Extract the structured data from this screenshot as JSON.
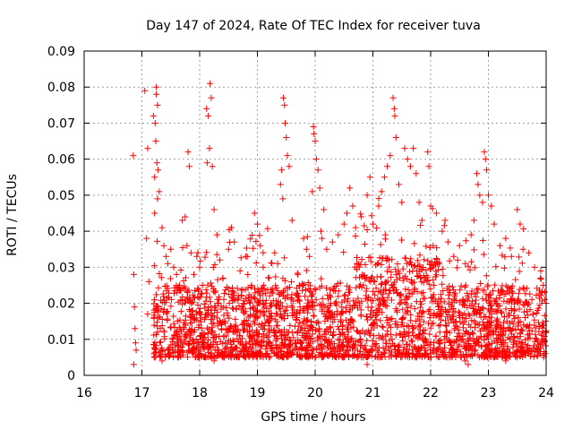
{
  "chart_data": {
    "type": "scatter",
    "title": "Day 147 of 2024, Rate Of TEC Index for receiver tuva",
    "xlabel": "GPS time / hours",
    "ylabel": "ROTI / TECUs",
    "xlim": [
      16,
      24
    ],
    "ylim": [
      0,
      0.09
    ],
    "x_ticks": [
      "16",
      "17",
      "18",
      "19",
      "20",
      "21",
      "22",
      "23",
      "24"
    ],
    "y_ticks": [
      "0",
      "0.01",
      "0.02",
      "0.03",
      "0.04",
      "0.05",
      "0.06",
      "0.07",
      "0.08",
      "0.09"
    ],
    "grid": true,
    "marker": "plus",
    "series_color": "#ff0000",
    "series": [
      {
        "name": "ROTI",
        "points": [
          [
            16.85,
            0.061
          ],
          [
            16.86,
            0.028
          ],
          [
            16.87,
            0.019
          ],
          [
            16.88,
            0.013
          ],
          [
            16.89,
            0.009
          ],
          [
            16.86,
            0.003
          ],
          [
            16.9,
            0.007
          ],
          [
            17.05,
            0.079
          ],
          [
            17.1,
            0.063
          ],
          [
            17.08,
            0.038
          ],
          [
            17.12,
            0.026
          ],
          [
            17.1,
            0.017
          ],
          [
            17.2,
            0.072
          ],
          [
            17.22,
            0.055
          ],
          [
            17.25,
            0.08
          ],
          [
            17.25,
            0.078
          ],
          [
            17.27,
            0.075
          ],
          [
            17.23,
            0.07
          ],
          [
            17.24,
            0.065
          ],
          [
            17.26,
            0.059
          ],
          [
            17.28,
            0.057
          ],
          [
            17.3,
            0.051
          ],
          [
            17.27,
            0.049
          ],
          [
            17.22,
            0.045
          ],
          [
            17.35,
            0.041
          ],
          [
            17.38,
            0.036
          ],
          [
            17.42,
            0.033
          ],
          [
            17.45,
            0.031
          ],
          [
            17.5,
            0.035
          ],
          [
            17.55,
            0.03
          ],
          [
            17.6,
            0.028
          ],
          [
            17.65,
            0.025
          ],
          [
            17.7,
            0.043
          ],
          [
            17.75,
            0.044
          ],
          [
            17.78,
            0.036
          ],
          [
            17.8,
            0.062
          ],
          [
            17.82,
            0.058
          ],
          [
            17.85,
            0.034
          ],
          [
            17.9,
            0.028
          ],
          [
            17.95,
            0.033
          ],
          [
            18.0,
            0.03
          ],
          [
            18.05,
            0.025
          ],
          [
            18.12,
            0.074
          ],
          [
            18.15,
            0.072
          ],
          [
            18.18,
            0.081
          ],
          [
            18.2,
            0.077
          ],
          [
            18.17,
            0.063
          ],
          [
            18.13,
            0.059
          ],
          [
            18.22,
            0.058
          ],
          [
            18.25,
            0.046
          ],
          [
            18.3,
            0.039
          ],
          [
            18.35,
            0.032
          ],
          [
            18.4,
            0.027
          ],
          [
            18.5,
            0.035
          ],
          [
            18.55,
            0.041
          ],
          [
            18.6,
            0.037
          ],
          [
            18.7,
            0.029
          ],
          [
            18.8,
            0.033
          ],
          [
            18.9,
            0.025
          ],
          [
            18.95,
            0.045
          ],
          [
            19.0,
            0.042
          ],
          [
            19.05,
            0.036
          ],
          [
            19.1,
            0.03
          ],
          [
            19.2,
            0.027
          ],
          [
            19.3,
            0.034
          ],
          [
            19.35,
            0.031
          ],
          [
            19.4,
            0.053
          ],
          [
            19.42,
            0.057
          ],
          [
            19.45,
            0.077
          ],
          [
            19.47,
            0.075
          ],
          [
            19.48,
            0.07
          ],
          [
            19.5,
            0.066
          ],
          [
            19.52,
            0.061
          ],
          [
            19.55,
            0.058
          ],
          [
            19.44,
            0.049
          ],
          [
            19.6,
            0.043
          ],
          [
            19.7,
            0.028
          ],
          [
            19.8,
            0.038
          ],
          [
            19.85,
            0.035
          ],
          [
            19.9,
            0.033
          ],
          [
            19.95,
            0.051
          ],
          [
            19.97,
            0.069
          ],
          [
            19.98,
            0.067
          ],
          [
            20.0,
            0.065
          ],
          [
            20.02,
            0.06
          ],
          [
            20.05,
            0.057
          ],
          [
            20.08,
            0.052
          ],
          [
            20.1,
            0.04
          ],
          [
            20.12,
            0.038
          ],
          [
            20.15,
            0.046
          ],
          [
            20.2,
            0.035
          ],
          [
            20.3,
            0.037
          ],
          [
            20.4,
            0.039
          ],
          [
            20.5,
            0.042
          ],
          [
            20.55,
            0.045
          ],
          [
            20.6,
            0.052
          ],
          [
            20.65,
            0.047
          ],
          [
            20.7,
            0.041
          ],
          [
            20.8,
            0.044
          ],
          [
            20.9,
            0.05
          ],
          [
            20.95,
            0.055
          ],
          [
            21.0,
            0.042
          ],
          [
            21.1,
            0.047
          ],
          [
            21.15,
            0.051
          ],
          [
            21.2,
            0.055
          ],
          [
            21.25,
            0.058
          ],
          [
            21.3,
            0.061
          ],
          [
            21.35,
            0.077
          ],
          [
            21.37,
            0.074
          ],
          [
            21.38,
            0.072
          ],
          [
            21.4,
            0.066
          ],
          [
            21.45,
            0.053
          ],
          [
            21.5,
            0.048
          ],
          [
            21.55,
            0.063
          ],
          [
            21.6,
            0.06
          ],
          [
            21.65,
            0.058
          ],
          [
            21.7,
            0.063
          ],
          [
            21.75,
            0.056
          ],
          [
            21.8,
            0.048
          ],
          [
            21.85,
            0.043
          ],
          [
            21.95,
            0.062
          ],
          [
            21.97,
            0.058
          ],
          [
            22.0,
            0.047
          ],
          [
            22.1,
            0.045
          ],
          [
            22.2,
            0.04
          ],
          [
            22.25,
            0.043
          ],
          [
            22.3,
            0.037
          ],
          [
            22.4,
            0.033
          ],
          [
            22.5,
            0.036
          ],
          [
            22.6,
            0.031
          ],
          [
            22.7,
            0.039
          ],
          [
            22.75,
            0.043
          ],
          [
            22.8,
            0.056
          ],
          [
            22.82,
            0.053
          ],
          [
            22.85,
            0.05
          ],
          [
            22.9,
            0.048
          ],
          [
            22.93,
            0.062
          ],
          [
            22.95,
            0.06
          ],
          [
            22.97,
            0.057
          ],
          [
            23.0,
            0.05
          ],
          [
            23.05,
            0.047
          ],
          [
            23.1,
            0.042
          ],
          [
            23.2,
            0.036
          ],
          [
            23.3,
            0.038
          ],
          [
            23.4,
            0.033
          ],
          [
            23.5,
            0.046
          ],
          [
            23.55,
            0.042
          ],
          [
            23.6,
            0.035
          ],
          [
            23.7,
            0.034
          ],
          [
            23.8,
            0.03
          ],
          [
            23.9,
            0.027
          ],
          [
            23.95,
            0.025
          ],
          [
            24.0,
            0.02
          ],
          [
            22.6,
            0.004
          ],
          [
            22.65,
            0.003
          ],
          [
            18.25,
            0.004
          ],
          [
            17.35,
            0.004
          ],
          [
            19.2,
            0.005
          ],
          [
            20.9,
            0.003
          ],
          [
            23.3,
            0.004
          ]
        ]
      }
    ],
    "dense_band": {
      "x_range": [
        17.2,
        24.0
      ],
      "y_core": [
        0.005,
        0.025
      ],
      "note": "continuous dense cluster of ROTI samples"
    }
  }
}
